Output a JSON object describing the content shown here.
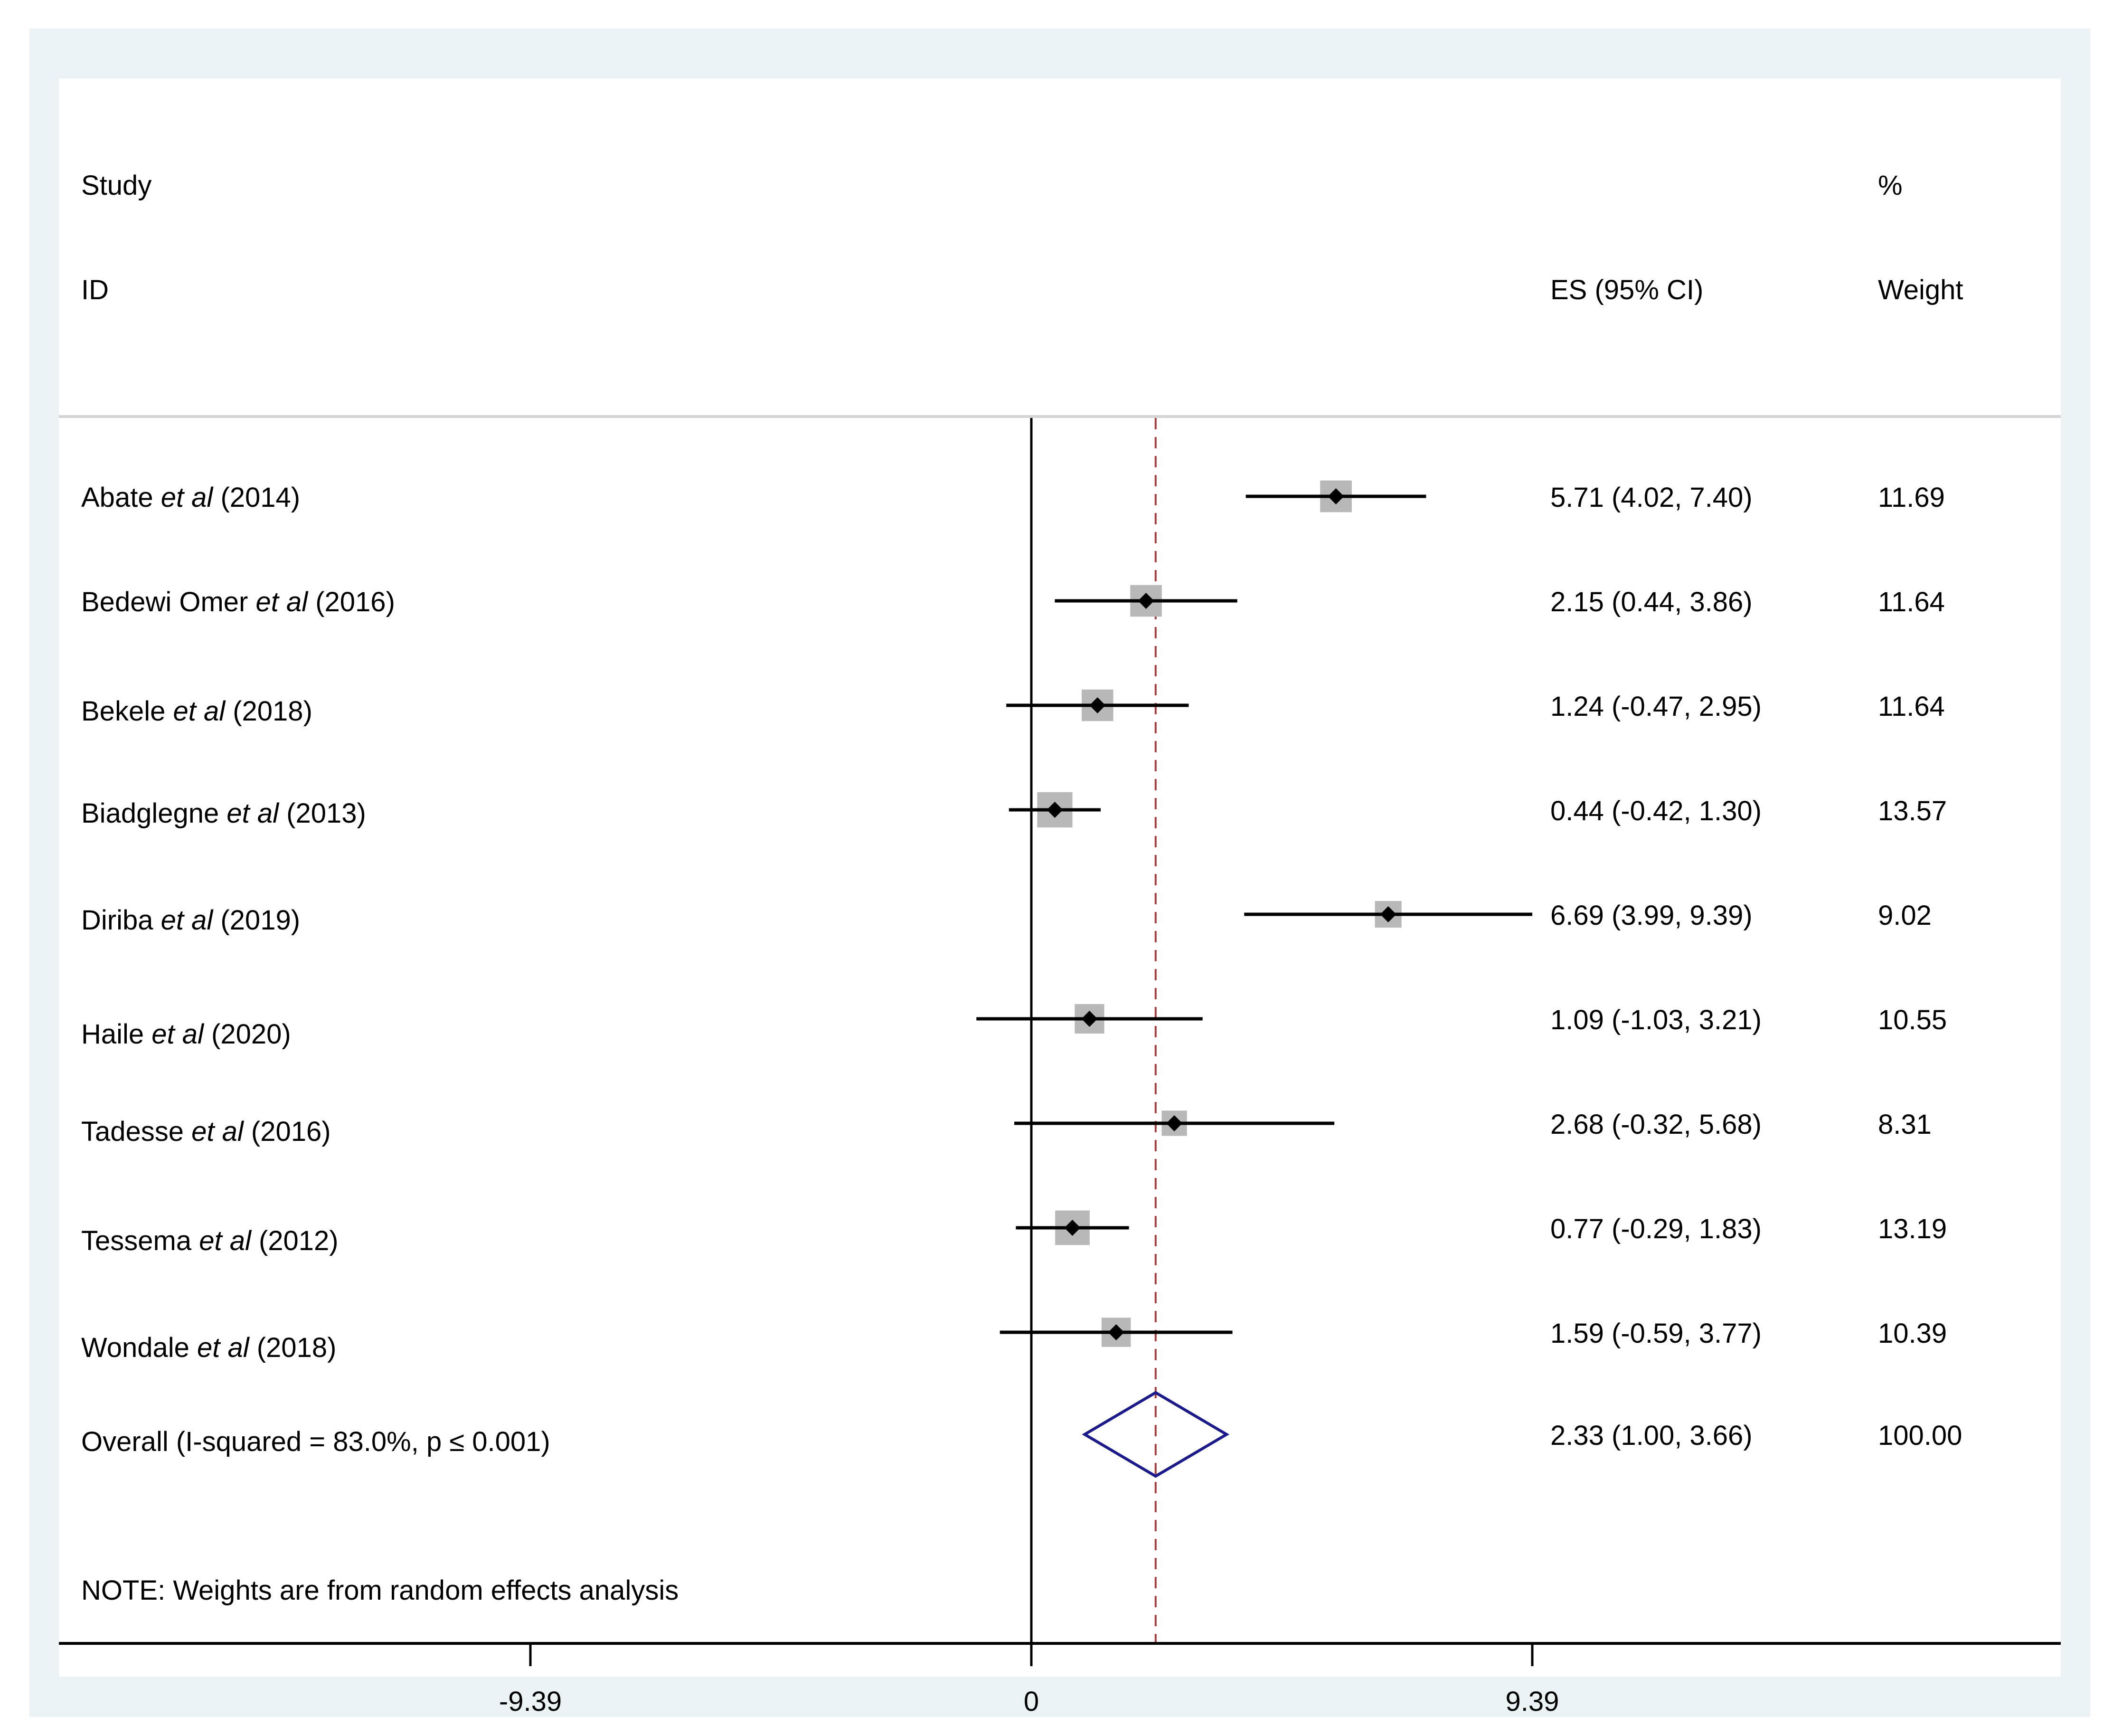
{
  "chart_data": {
    "type": "forest",
    "header": {
      "study_line1": "Study",
      "study_line2": "ID",
      "es_header": "ES (95% CI)",
      "weight_line1": "%",
      "weight_line2": "Weight"
    },
    "xlim": [
      -9.39,
      9.39
    ],
    "xticks": [
      {
        "value": -9.39,
        "label": "-9.39"
      },
      {
        "value": 0,
        "label": "0"
      },
      {
        "value": 9.39,
        "label": "9.39"
      }
    ],
    "reference_line": 0,
    "overall_line": 2.33,
    "studies": [
      {
        "author": "Abate",
        "etal": "et al",
        "year": "(2014)",
        "es": 5.71,
        "lo": 4.02,
        "hi": 7.4,
        "es_label": "5.71 (4.02, 7.40)",
        "weight": 11.69,
        "weight_label": "11.69"
      },
      {
        "author": "Bedewi Omer",
        "etal": "et al",
        "year": "(2016)",
        "es": 2.15,
        "lo": 0.44,
        "hi": 3.86,
        "es_label": "2.15 (0.44, 3.86)",
        "weight": 11.64,
        "weight_label": "11.64"
      },
      {
        "author": "Bekele",
        "etal": "et al",
        "year": "(2018)",
        "es": 1.24,
        "lo": -0.47,
        "hi": 2.95,
        "es_label": "1.24 (-0.47, 2.95)",
        "weight": 11.64,
        "weight_label": "11.64"
      },
      {
        "author": "Biadglegne",
        "etal": "et al",
        "year": "(2013)",
        "es": 0.44,
        "lo": -0.42,
        "hi": 1.3,
        "es_label": "0.44 (-0.42, 1.30)",
        "weight": 13.57,
        "weight_label": "13.57"
      },
      {
        "author": "Diriba",
        "etal": "et al",
        "year": "(2019)",
        "es": 6.69,
        "lo": 3.99,
        "hi": 9.39,
        "es_label": "6.69 (3.99, 9.39)",
        "weight": 9.02,
        "weight_label": "9.02"
      },
      {
        "author": "Haile",
        "etal": "et al",
        "year": "(2020)",
        "es": 1.09,
        "lo": -1.03,
        "hi": 3.21,
        "es_label": "1.09 (-1.03, 3.21)",
        "weight": 10.55,
        "weight_label": "10.55"
      },
      {
        "author": "Tadesse",
        "etal": "et al",
        "year": "(2016)",
        "es": 2.68,
        "lo": -0.32,
        "hi": 5.68,
        "es_label": "2.68 (-0.32, 5.68)",
        "weight": 8.31,
        "weight_label": "8.31"
      },
      {
        "author": "Tessema",
        "etal": "et al",
        "year": "(2012)",
        "es": 0.77,
        "lo": -0.29,
        "hi": 1.83,
        "es_label": "0.77 (-0.29, 1.83)",
        "weight": 13.19,
        "weight_label": "13.19"
      },
      {
        "author": "Wondale",
        "etal": "et al",
        "year": "(2018)",
        "es": 1.59,
        "lo": -0.59,
        "hi": 3.77,
        "es_label": "1.59 (-0.59, 3.77)",
        "weight": 10.39,
        "weight_label": "10.39"
      }
    ],
    "overall": {
      "label": "Overall (I-squared = 83.0%, p ≤ 0.001)",
      "es": 2.33,
      "lo": 1.0,
      "hi": 3.66,
      "es_label": "2.33 (1.00, 3.66)",
      "weight_label": "100.00"
    },
    "note": "NOTE: Weights are from random effects analysis",
    "colors": {
      "line": "#000000",
      "box": "#b8b8b8",
      "overall_diamond": "#1a1a8c",
      "overall_line": "#a83a3a",
      "panel_border": "#eaf2f3",
      "separator": "#d4d4d4"
    }
  }
}
